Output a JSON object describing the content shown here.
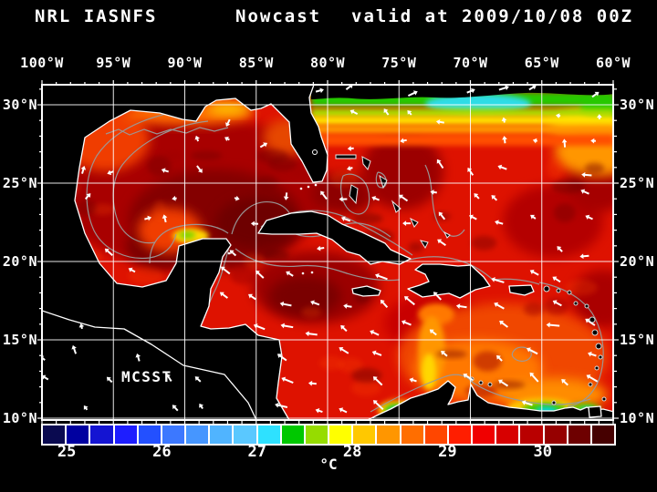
{
  "title": {
    "product": "NRL IASNFS",
    "run_type": "Nowcast",
    "valid": "valid at 2009/10/08 00Z"
  },
  "map": {
    "annotation": "MCSST",
    "top_axis_labels": [
      "100°W",
      "95°W",
      "90°W",
      "85°W",
      "80°W",
      "75°W",
      "70°W",
      "65°W",
      "60°W"
    ],
    "left_axis_labels": [
      "30°N",
      "25°N",
      "20°N",
      "15°N",
      "10°N"
    ],
    "right_axis_labels": [
      "30°N",
      "25°N",
      "20°N",
      "15°N",
      "10°N"
    ],
    "lon_extent": [
      "100°W",
      "60°W"
    ],
    "lat_extent": [
      "10°N",
      "30°N"
    ],
    "grid_interval_deg": 5
  },
  "colorbar": {
    "unit": "°C",
    "tick_labels": [
      "25",
      "26",
      "27",
      "28",
      "29",
      "30"
    ],
    "min": 24.75,
    "max": 30.75,
    "step_c": 0.25,
    "segment_colors": [
      "#0a0a50",
      "#0000a0",
      "#1414d2",
      "#1e1eff",
      "#2350ff",
      "#3c78ff",
      "#4696ff",
      "#50b4ff",
      "#5ac8ff",
      "#2ee1ff",
      "#00c800",
      "#96dc00",
      "#ffff00",
      "#ffc800",
      "#ff9600",
      "#ff6e00",
      "#ff4600",
      "#ff1e00",
      "#f00000",
      "#d70000",
      "#b90000",
      "#960000",
      "#6e0000",
      "#460000"
    ]
  },
  "colors": {
    "background": "#000000",
    "text": "#ffffff",
    "grid": "#ffffff",
    "coastline": "#ffffff",
    "contour": "#9a9a9a",
    "land": "#000000",
    "current_vector": "#ffffff",
    "base_sst_red": "#de1200"
  },
  "sst_reading_c": {
    "gulf_of_mexico": "29.5-30.5 dark red with maroon core",
    "nw_caribbean": "30-30.7 darkest red south of Cuba",
    "central_caribbean": "29.5-30 red, westward current vectors",
    "se_caribbean": "28.5-29.5 orange pool",
    "atlantic_north_band": "26.5-28 green band near 30N with cyan pocket near 74W, yellow-orange transition southward",
    "south_of_hispaniola_plume": "28-28.5 orange-yellow plume",
    "yucatan_coast_patch": "27.5-28 yellow-green spot near 87W 21.5N",
    "colombia_venezuela_upwelling": "25.5-27.5 cyan-green coastal patches"
  }
}
